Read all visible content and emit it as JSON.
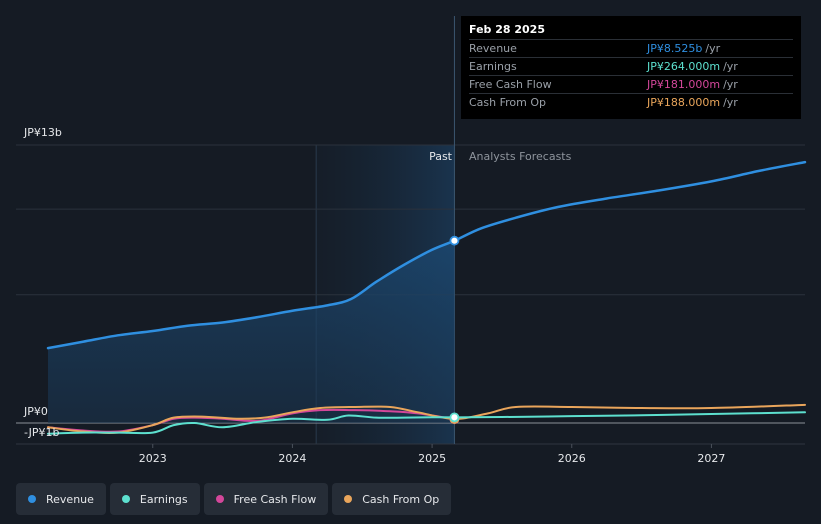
{
  "chart_data": {
    "type": "line",
    "title": "",
    "y_top_label": "JP¥13b",
    "y_zero_label": "JP¥0",
    "y_neg_label": "-JP¥1b",
    "ylim": [
      -1,
      13
    ],
    "xlim": [
      2022.25,
      2027.67
    ],
    "x_ticks": [
      "2023",
      "2024",
      "2025",
      "2026",
      "2027"
    ],
    "x_tick_values": [
      2023,
      2024,
      2025,
      2026,
      2027
    ],
    "past_label": "Past",
    "forecast_label": "Analysts Forecasts",
    "past_region": [
      2024.17,
      2025.16
    ],
    "forecast_start": 2025.16,
    "highlight_x": 2025.16,
    "series": [
      {
        "name": "Revenue",
        "color": "#2f8fe0",
        "fill": true,
        "x": [
          2022.25,
          2022.5,
          2022.75,
          2023.0,
          2023.25,
          2023.5,
          2023.75,
          2024.0,
          2024.25,
          2024.42,
          2024.6,
          2024.8,
          2025.0,
          2025.16,
          2025.35,
          2025.6,
          2025.9,
          2026.25,
          2026.6,
          2027.0,
          2027.35,
          2027.67
        ],
        "y": [
          3.5,
          3.8,
          4.1,
          4.3,
          4.55,
          4.7,
          4.95,
          5.25,
          5.5,
          5.8,
          6.6,
          7.4,
          8.1,
          8.525,
          9.1,
          9.6,
          10.1,
          10.5,
          10.85,
          11.3,
          11.8,
          12.2
        ]
      },
      {
        "name": "Earnings",
        "color": "#5de0cf",
        "fill": false,
        "x": [
          2022.25,
          2022.5,
          2022.75,
          2023.0,
          2023.15,
          2023.3,
          2023.5,
          2023.75,
          2024.0,
          2024.25,
          2024.4,
          2024.6,
          2024.8,
          2025.0,
          2025.16,
          2025.5,
          2026.0,
          2026.5,
          2027.0,
          2027.67
        ],
        "y": [
          -0.5,
          -0.45,
          -0.45,
          -0.45,
          -0.1,
          0.0,
          -0.2,
          0.05,
          0.2,
          0.15,
          0.35,
          0.25,
          0.25,
          0.27,
          0.264,
          0.28,
          0.32,
          0.36,
          0.42,
          0.5
        ]
      },
      {
        "name": "Free Cash Flow",
        "color": "#d3479a",
        "fill": false,
        "x": [
          2022.25,
          2022.5,
          2022.75,
          2023.0,
          2023.15,
          2023.3,
          2023.5,
          2023.75,
          2024.0,
          2024.2,
          2024.45,
          2024.7,
          2024.9,
          2025.16
        ],
        "y": [
          -0.2,
          -0.35,
          -0.4,
          -0.1,
          0.2,
          0.25,
          0.2,
          0.1,
          0.45,
          0.6,
          0.6,
          0.55,
          0.45,
          0.181
        ]
      },
      {
        "name": "Cash From Op",
        "color": "#e9a55b",
        "fill": false,
        "x": [
          2022.25,
          2022.5,
          2022.75,
          2023.0,
          2023.15,
          2023.35,
          2023.6,
          2023.8,
          2024.0,
          2024.2,
          2024.45,
          2024.7,
          2024.9,
          2025.16,
          2025.4,
          2025.6,
          2026.0,
          2026.5,
          2027.0,
          2027.67
        ],
        "y": [
          -0.2,
          -0.4,
          -0.45,
          -0.1,
          0.25,
          0.3,
          0.2,
          0.25,
          0.5,
          0.7,
          0.75,
          0.75,
          0.5,
          0.188,
          0.45,
          0.75,
          0.75,
          0.7,
          0.7,
          0.85
        ]
      }
    ]
  },
  "tooltip": {
    "date": "Feb 28 2025",
    "rows": [
      {
        "label": "Revenue",
        "value": "JP¥8.525b",
        "unit": "/yr",
        "color": "#2f8fe0"
      },
      {
        "label": "Earnings",
        "value": "JP¥264.000m",
        "unit": "/yr",
        "color": "#5de0cf"
      },
      {
        "label": "Free Cash Flow",
        "value": "JP¥181.000m",
        "unit": "/yr",
        "color": "#d3479a"
      },
      {
        "label": "Cash From Op",
        "value": "JP¥188.000m",
        "unit": "/yr",
        "color": "#e9a55b"
      }
    ]
  },
  "legend": [
    {
      "label": "Revenue",
      "color": "#2f8fe0"
    },
    {
      "label": "Earnings",
      "color": "#5de0cf"
    },
    {
      "label": "Free Cash Flow",
      "color": "#d3479a"
    },
    {
      "label": "Cash From Op",
      "color": "#e9a55b"
    }
  ]
}
